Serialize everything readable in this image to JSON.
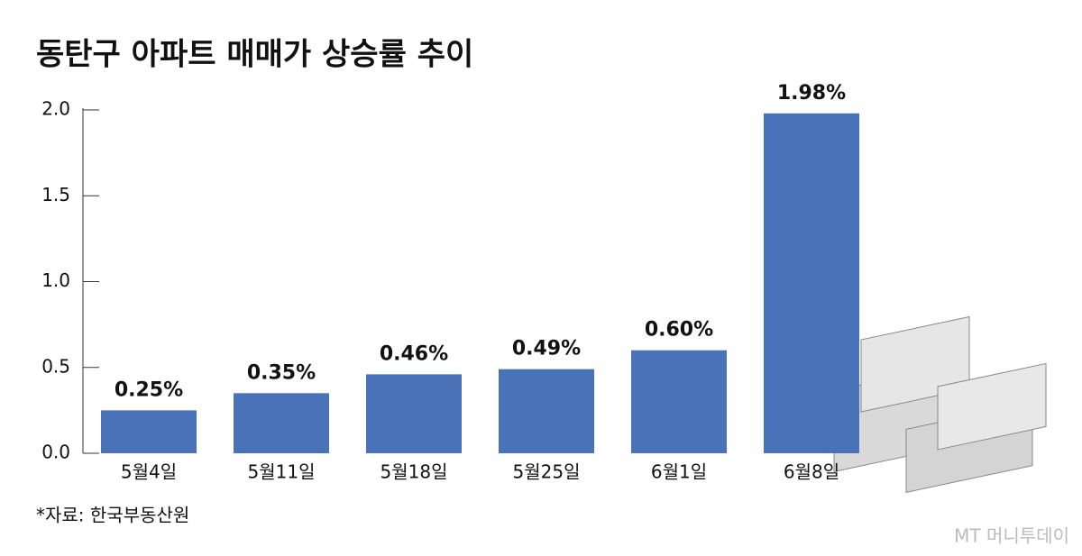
{
  "chart_data": {
    "type": "bar",
    "title": "동탄구 아파트 매매가 상승률 추이",
    "categories": [
      "5월4일",
      "5월11일",
      "5월18일",
      "5월25일",
      "6월1일",
      "6월8일"
    ],
    "values": [
      0.25,
      0.35,
      0.46,
      0.49,
      0.6,
      1.98
    ],
    "value_labels": [
      "0.25%",
      "0.35%",
      "0.46%",
      "0.49%",
      "0.60%",
      "1.98%"
    ],
    "color": "#4a72b8",
    "ylim": [
      0,
      2
    ],
    "yticks": [
      {
        "value": 0,
        "label": "0.0"
      },
      {
        "value": 0.5,
        "label": "0.5"
      },
      {
        "value": 1,
        "label": "1.0"
      },
      {
        "value": 1.5,
        "label": "1.5"
      },
      {
        "value": 2,
        "label": "2.0"
      }
    ],
    "source": "*자료: 한국부동산원",
    "watermark": "MT 머니투데이"
  }
}
